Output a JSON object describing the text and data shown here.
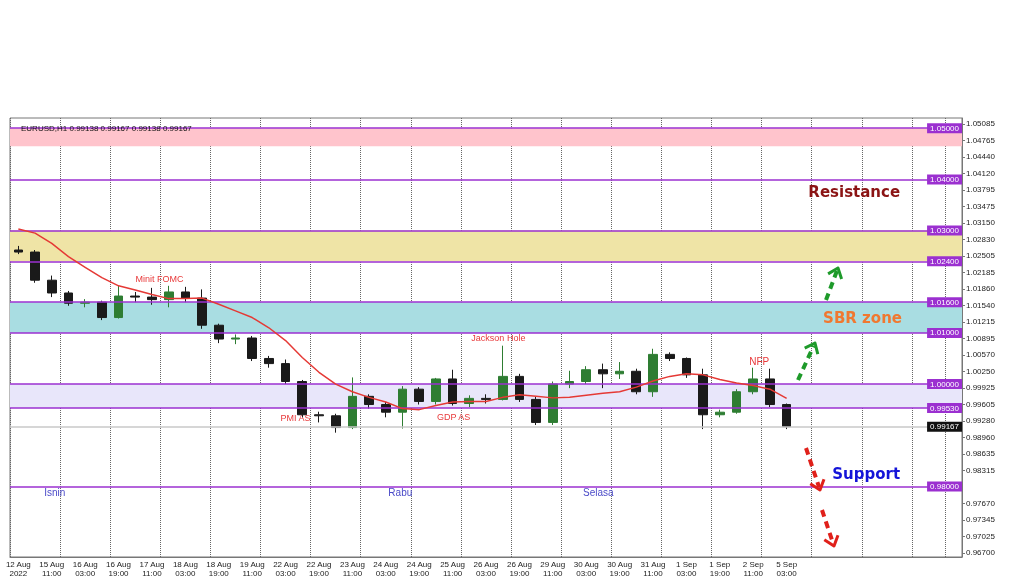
{
  "chart_data": {
    "type": "candlestick",
    "title": "EURUSD,H1 0.99138 0.99167 0.99138 0.99167",
    "categories": [
      "12 Aug 2022",
      null,
      "15 Aug 11:00",
      null,
      "16 Aug 03:00",
      null,
      "16 Aug 19:00",
      null,
      "17 Aug 11:00",
      null,
      "18 Aug 03:00",
      null,
      "18 Aug 19:00",
      null,
      "19 Aug 11:00",
      null,
      "22 Aug 03:00",
      null,
      "22 Aug 19:00",
      null,
      "23 Aug 11:00",
      null,
      "24 Aug 03:00",
      null,
      "24 Aug 19:00",
      null,
      "25 Aug 11:00",
      null,
      "26 Aug 03:00",
      null,
      "26 Aug 19:00",
      null,
      "29 Aug 11:00",
      null,
      "30 Aug 03:00",
      null,
      "30 Aug 19:00",
      null,
      "31 Aug 11:00",
      null,
      "1 Sep 03:00",
      null,
      "1 Sep 19:00",
      null,
      "2 Sep 11:00",
      null,
      "5 Sep 03:00",
      null,
      null,
      null,
      null,
      null,
      null,
      null,
      null,
      null,
      null
    ],
    "ohlc": [
      [
        1.0262,
        1.027,
        1.0254,
        1.0258
      ],
      [
        1.0258,
        1.0262,
        1.0198,
        1.0203
      ],
      [
        1.0203,
        1.0212,
        1.017,
        1.0178
      ],
      [
        1.0178,
        1.0182,
        1.0153,
        1.0158
      ],
      [
        1.0158,
        1.0166,
        1.015,
        1.016
      ],
      [
        1.016,
        1.0163,
        1.0125,
        1.013
      ],
      [
        1.013,
        1.0192,
        1.0128,
        1.0172
      ],
      [
        1.0172,
        1.018,
        1.016,
        1.017
      ],
      [
        1.017,
        1.0188,
        1.0155,
        1.0165
      ],
      [
        1.0165,
        1.0192,
        1.015,
        1.018
      ],
      [
        1.018,
        1.019,
        1.016,
        1.0168
      ],
      [
        1.0168,
        1.0185,
        1.0108,
        1.0115
      ],
      [
        1.0115,
        1.0118,
        1.008,
        1.0088
      ],
      [
        1.0088,
        1.0097,
        1.0078,
        1.009
      ],
      [
        1.009,
        1.0094,
        1.0045,
        1.005
      ],
      [
        1.005,
        1.0055,
        1.0032,
        1.004
      ],
      [
        1.004,
        1.0048,
        1.0,
        1.0005
      ],
      [
        1.0005,
        1.0008,
        0.9935,
        0.994
      ],
      [
        0.994,
        0.9946,
        0.9925,
        0.9938
      ],
      [
        0.9938,
        0.9942,
        0.9905,
        0.9915
      ],
      [
        0.9915,
        1.0013,
        0.9912,
        0.9976
      ],
      [
        0.9976,
        0.998,
        0.9952,
        0.996
      ],
      [
        0.996,
        0.9965,
        0.9935,
        0.9945
      ],
      [
        0.9945,
        0.9996,
        0.9913,
        0.999
      ],
      [
        0.999,
        0.9994,
        0.996,
        0.9966
      ],
      [
        0.9966,
        1.0012,
        0.996,
        1.001
      ],
      [
        1.001,
        1.0028,
        0.9958,
        0.9962
      ],
      [
        0.9962,
        0.9978,
        0.9955,
        0.9972
      ],
      [
        0.9972,
        0.998,
        0.9962,
        0.997
      ],
      [
        0.997,
        1.0075,
        0.9968,
        1.0015
      ],
      [
        1.0015,
        1.002,
        0.9965,
        0.997
      ],
      [
        0.997,
        0.9975,
        0.992,
        0.9925
      ],
      [
        0.9925,
        1.0005,
        0.992,
        1.0
      ],
      [
        1.0,
        1.0026,
        0.9992,
        1.0005
      ],
      [
        1.0005,
        1.0035,
        1.0,
        1.0028
      ],
      [
        1.0028,
        1.004,
        0.9992,
        1.002
      ],
      [
        1.002,
        1.0043,
        1.001,
        1.0025
      ],
      [
        1.0025,
        1.003,
        0.998,
        0.9985
      ],
      [
        0.9985,
        1.0069,
        0.9975,
        1.0058
      ],
      [
        1.0058,
        1.0062,
        1.0045,
        1.005
      ],
      [
        1.005,
        1.0052,
        1.0012,
        1.0018
      ],
      [
        1.0018,
        1.003,
        0.9912,
        0.994
      ],
      [
        0.994,
        0.995,
        0.9935,
        0.9945
      ],
      [
        0.9945,
        0.999,
        0.9942,
        0.9985
      ],
      [
        0.9985,
        1.0032,
        0.998,
        1.001
      ],
      [
        1.001,
        1.003,
        0.9955,
        0.996
      ],
      [
        0.996,
        0.9962,
        0.9912,
        0.99167
      ],
      null,
      null,
      null,
      null,
      null,
      null,
      null,
      null,
      null,
      null
    ],
    "series": [
      {
        "type": "line",
        "color": "#e53935",
        "values": [
          1.0303,
          1.0295,
          1.0275,
          1.0249,
          1.0228,
          1.0208,
          1.0192,
          1.0184,
          1.0175,
          1.0167,
          1.0167,
          1.0168,
          1.0156,
          1.0143,
          1.013,
          1.011,
          1.0085,
          1.0052,
          1.0023,
          1.0,
          0.9985,
          0.9974,
          0.9965,
          0.9952,
          0.995,
          0.9958,
          0.9965,
          0.9966,
          0.9966,
          0.9974,
          0.9979,
          0.9976,
          0.9973,
          0.9974,
          0.9978,
          0.9982,
          0.9985,
          0.9994,
          1.0006,
          1.0015,
          1.002,
          1.0018,
          1.0009,
          1.0002,
          0.9997,
          0.999,
          0.9972,
          null,
          null,
          null,
          null,
          null,
          null,
          null,
          null,
          null,
          null
        ]
      }
    ],
    "marker": "none",
    "grid": "x",
    "ylim": [
      0.9662,
      1.052
    ],
    "yticks": [
      {
        "value": 0.967,
        "label": "0.96700"
      },
      {
        "value": 0.97025,
        "label": "0.97025"
      },
      {
        "value": 0.97345,
        "label": "0.97345"
      },
      {
        "value": 0.9767,
        "label": "0.97670"
      },
      {
        "value": 0.98315,
        "label": "0.98315"
      },
      {
        "value": 0.98635,
        "label": "0.98635"
      },
      {
        "value": 0.9896,
        "label": "0.98960"
      },
      {
        "value": 0.9928,
        "label": "0.99280"
      },
      {
        "value": 0.99605,
        "label": "0.99605"
      },
      {
        "value": 0.99925,
        "label": "0.99925"
      },
      {
        "value": 1.0025,
        "label": "1.00250"
      },
      {
        "value": 1.0057,
        "label": "1.00570"
      },
      {
        "value": 1.00895,
        "label": "1.00895"
      },
      {
        "value": 1.01215,
        "label": "1.01215"
      },
      {
        "value": 1.0154,
        "label": "1.01540"
      },
      {
        "value": 1.0186,
        "label": "1.01860"
      },
      {
        "value": 1.02185,
        "label": "1.02185"
      },
      {
        "value": 1.02505,
        "label": "1.02505"
      },
      {
        "value": 1.0283,
        "label": "1.02830"
      },
      {
        "value": 1.0315,
        "label": "1.03150"
      },
      {
        "value": 1.03475,
        "label": "1.03475"
      },
      {
        "value": 1.03795,
        "label": "1.03795"
      },
      {
        "value": 1.0412,
        "label": "1.04120"
      },
      {
        "value": 1.0444,
        "label": "1.04440"
      },
      {
        "value": 1.04765,
        "label": "1.04765"
      },
      {
        "value": 1.05085,
        "label": "1.05085"
      }
    ],
    "ref_lines": [
      {
        "axis": "y",
        "value": 1.05,
        "label": "1.05000",
        "color": "#9b30d0"
      },
      {
        "axis": "y",
        "value": 1.04,
        "label": "1.04000",
        "color": "#9b30d0"
      },
      {
        "axis": "y",
        "value": 1.03,
        "label": "1.03000",
        "color": "#9b30d0"
      },
      {
        "axis": "y",
        "value": 1.024,
        "label": "1.02400",
        "color": "#9b30d0"
      },
      {
        "axis": "y",
        "value": 1.016,
        "label": "1.01600",
        "color": "#9b30d0"
      },
      {
        "axis": "y",
        "value": 1.01,
        "label": "1.01000",
        "color": "#9b30d0"
      },
      {
        "axis": "y",
        "value": 1.0,
        "label": "1.00000",
        "color": "#9b30d0"
      },
      {
        "axis": "y",
        "value": 0.9953,
        "label": "0.99530",
        "color": "#9b30d0"
      },
      {
        "axis": "y",
        "value": 0.98,
        "label": "0.98000",
        "color": "#9b30d0"
      },
      {
        "axis": "y",
        "value": 0.99167,
        "label": "0.99167",
        "color": "#c8c8c8"
      }
    ],
    "bands": [
      {
        "axis": "y",
        "from": 1.0465,
        "to": 1.05,
        "color": "#ffc4cc"
      },
      {
        "axis": "y",
        "from": 1.024,
        "to": 1.03,
        "color": "#efe4a6"
      },
      {
        "axis": "y",
        "from": 1.01,
        "to": 1.016,
        "color": "#a9dde2",
        "label": "SBR zone"
      },
      {
        "axis": "y",
        "from": 0.9953,
        "to": 1.0,
        "color": "#e8e6fa"
      }
    ],
    "annotations": [
      "Minit FOMC",
      "PMI AS",
      "GDP AS",
      "Jackson Hole",
      "NFP",
      "Isnin",
      "Rabu",
      "Selasa",
      "Resistance",
      "Support"
    ]
  }
}
